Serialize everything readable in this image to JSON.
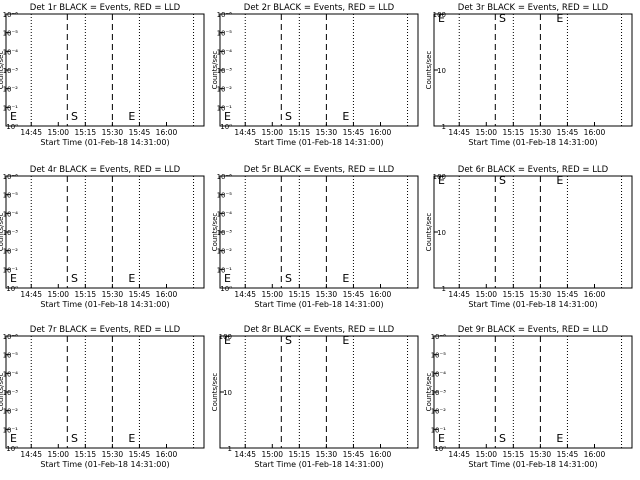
{
  "chart_data": [
    {
      "type": "line",
      "title": "Det 1r BLACK = Events, RED = LLD",
      "xlabel": "Start Time (01-Feb-18 14:31:00)",
      "ylabel": "Counts/sec",
      "yscale": "log",
      "ytick_labels": [
        "10⁰",
        "10⁻¹",
        "10⁻²",
        "10⁻³",
        "10⁻⁴",
        "10⁻⁵",
        "10⁻⁶"
      ],
      "xtick_labels": [
        "14:45",
        "15:00",
        "15:15",
        "15:30",
        "15:45",
        "16:00"
      ],
      "markers": [
        "E",
        "S",
        "E"
      ],
      "series": []
    },
    {
      "type": "line",
      "title": "Det 2r BLACK = Events, RED = LLD",
      "xlabel": "Start Time (01-Feb-18 14:31:00)",
      "ylabel": "Counts/sec",
      "yscale": "log",
      "ytick_labels": [
        "10⁰",
        "10⁻¹",
        "10⁻²",
        "10⁻³",
        "10⁻⁴",
        "10⁻⁵",
        "10⁻⁶"
      ],
      "xtick_labels": [
        "14:45",
        "15:00",
        "15:15",
        "15:30",
        "15:45",
        "16:00"
      ],
      "markers": [
        "E",
        "S",
        "E"
      ],
      "series": []
    },
    {
      "type": "line",
      "title": "Det 3r BLACK = Events, RED = LLD",
      "xlabel": "Start Time (01-Feb-18 14:31:00)",
      "ylabel": "Counts/sec",
      "yscale": "log",
      "ytick_labels": [
        "1",
        "10",
        "100"
      ],
      "xtick_labels": [
        "14:45",
        "15:00",
        "15:15",
        "15:30",
        "15:45",
        "16:00"
      ],
      "markers": [
        "E",
        "S",
        "E"
      ],
      "series": []
    },
    {
      "type": "line",
      "title": "Det 4r BLACK = Events, RED = LLD",
      "xlabel": "Start Time (01-Feb-18 14:31:00)",
      "ylabel": "Counts/sec",
      "yscale": "log",
      "ytick_labels": [
        "10⁰",
        "10⁻¹",
        "10⁻²",
        "10⁻³",
        "10⁻⁴",
        "10⁻⁵",
        "10⁻⁶"
      ],
      "xtick_labels": [
        "14:45",
        "15:00",
        "15:15",
        "15:30",
        "15:45",
        "16:00"
      ],
      "markers": [
        "E",
        "S",
        "E"
      ],
      "series": []
    },
    {
      "type": "line",
      "title": "Det 5r BLACK = Events, RED = LLD",
      "xlabel": "Start Time (01-Feb-18 14:31:00)",
      "ylabel": "Counts/sec",
      "yscale": "log",
      "ytick_labels": [
        "10⁰",
        "10⁻¹",
        "10⁻²",
        "10⁻³",
        "10⁻⁴",
        "10⁻⁵",
        "10⁻⁶"
      ],
      "xtick_labels": [
        "14:45",
        "15:00",
        "15:15",
        "15:30",
        "15:45",
        "16:00"
      ],
      "markers": [
        "E",
        "S",
        "E"
      ],
      "series": []
    },
    {
      "type": "line",
      "title": "Det 6r BLACK = Events, RED = LLD",
      "xlabel": "Start Time (01-Feb-18 14:31:00)",
      "ylabel": "Counts/sec",
      "yscale": "log",
      "ytick_labels": [
        "1",
        "10",
        "100"
      ],
      "xtick_labels": [
        "14:45",
        "15:00",
        "15:15",
        "15:30",
        "15:45",
        "16:00"
      ],
      "markers": [
        "E",
        "S",
        "E"
      ],
      "series": []
    },
    {
      "type": "line",
      "title": "Det 7r BLACK = Events, RED = LLD",
      "xlabel": "Start Time (01-Feb-18 14:31:00)",
      "ylabel": "Counts/sec",
      "yscale": "log",
      "ytick_labels": [
        "10⁰",
        "10⁻¹",
        "10⁻²",
        "10⁻³",
        "10⁻⁴",
        "10⁻⁵",
        "10⁻⁶"
      ],
      "xtick_labels": [
        "14:45",
        "15:00",
        "15:15",
        "15:30",
        "15:45",
        "16:00"
      ],
      "markers": [
        "E",
        "S",
        "E"
      ],
      "series": []
    },
    {
      "type": "line",
      "title": "Det 8r BLACK = Events, RED = LLD",
      "xlabel": "Start Time (01-Feb-18 14:31:00)",
      "ylabel": "Counts/sec",
      "yscale": "log",
      "ytick_labels": [
        "1",
        "10",
        "100"
      ],
      "xtick_labels": [
        "14:45",
        "15:00",
        "15:15",
        "15:30",
        "15:45",
        "16:00"
      ],
      "markers": [
        "E",
        "S",
        "E"
      ],
      "series": []
    },
    {
      "type": "line",
      "title": "Det 9r BLACK = Events, RED = LLD",
      "xlabel": "Start Time (01-Feb-18 14:31:00)",
      "ylabel": "Counts/sec",
      "yscale": "log",
      "ytick_labels": [
        "10⁰",
        "10⁻¹",
        "10⁻²",
        "10⁻³",
        "10⁻⁴",
        "10⁻⁵",
        "10⁻⁶"
      ],
      "xtick_labels": [
        "14:45",
        "15:00",
        "15:15",
        "15:30",
        "15:45",
        "16:00"
      ],
      "markers": [
        "E",
        "S",
        "E"
      ],
      "series": []
    }
  ],
  "colors": {
    "events": "#000000",
    "lld": "#ff0000"
  }
}
